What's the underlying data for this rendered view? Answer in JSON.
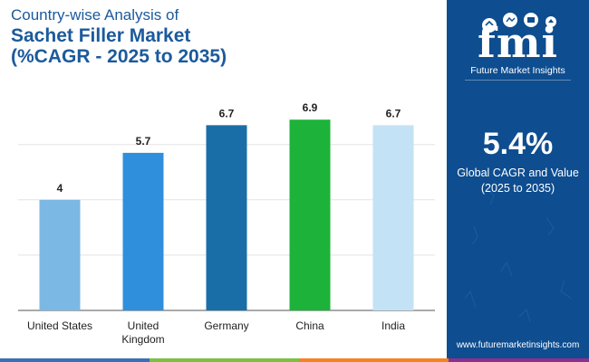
{
  "title": {
    "line1": "Country-wise Analysis of",
    "line2": "Sachet Filler Market",
    "line3": "(%CAGR - 2025 to 2035)"
  },
  "chart_data": {
    "type": "bar",
    "categories": [
      "United States",
      "United Kingdom",
      "Germany",
      "China",
      "India"
    ],
    "category_lines": [
      [
        "United States"
      ],
      [
        "United",
        "Kingdom"
      ],
      [
        "Germany"
      ],
      [
        "China"
      ],
      [
        "India"
      ]
    ],
    "values": [
      4,
      5.7,
      6.7,
      6.9,
      6.7
    ],
    "value_labels": [
      "4",
      "5.7",
      "6.7",
      "6.9",
      "6.7"
    ],
    "colors": [
      "#7cb8e4",
      "#2f8fdc",
      "#1a6ea8",
      "#1db33a",
      "#c4e2f5"
    ],
    "ylim": [
      0,
      7.3
    ],
    "grid": true
  },
  "side_panel": {
    "logo_word": "fmi",
    "logo_name": "Future Market Insights",
    "cagr_value": "5.4%",
    "cagr_line1": "Global CAGR and Value",
    "cagr_line2": "(2025 to 2035)",
    "website": "www.futuremarketinsights.com"
  },
  "colors": {
    "brand": "#0e4d8f",
    "title": "#1b5a9c",
    "stripe": [
      "#3b6fb6",
      "#7cc142",
      "#f58220",
      "#8e2f8f"
    ]
  }
}
